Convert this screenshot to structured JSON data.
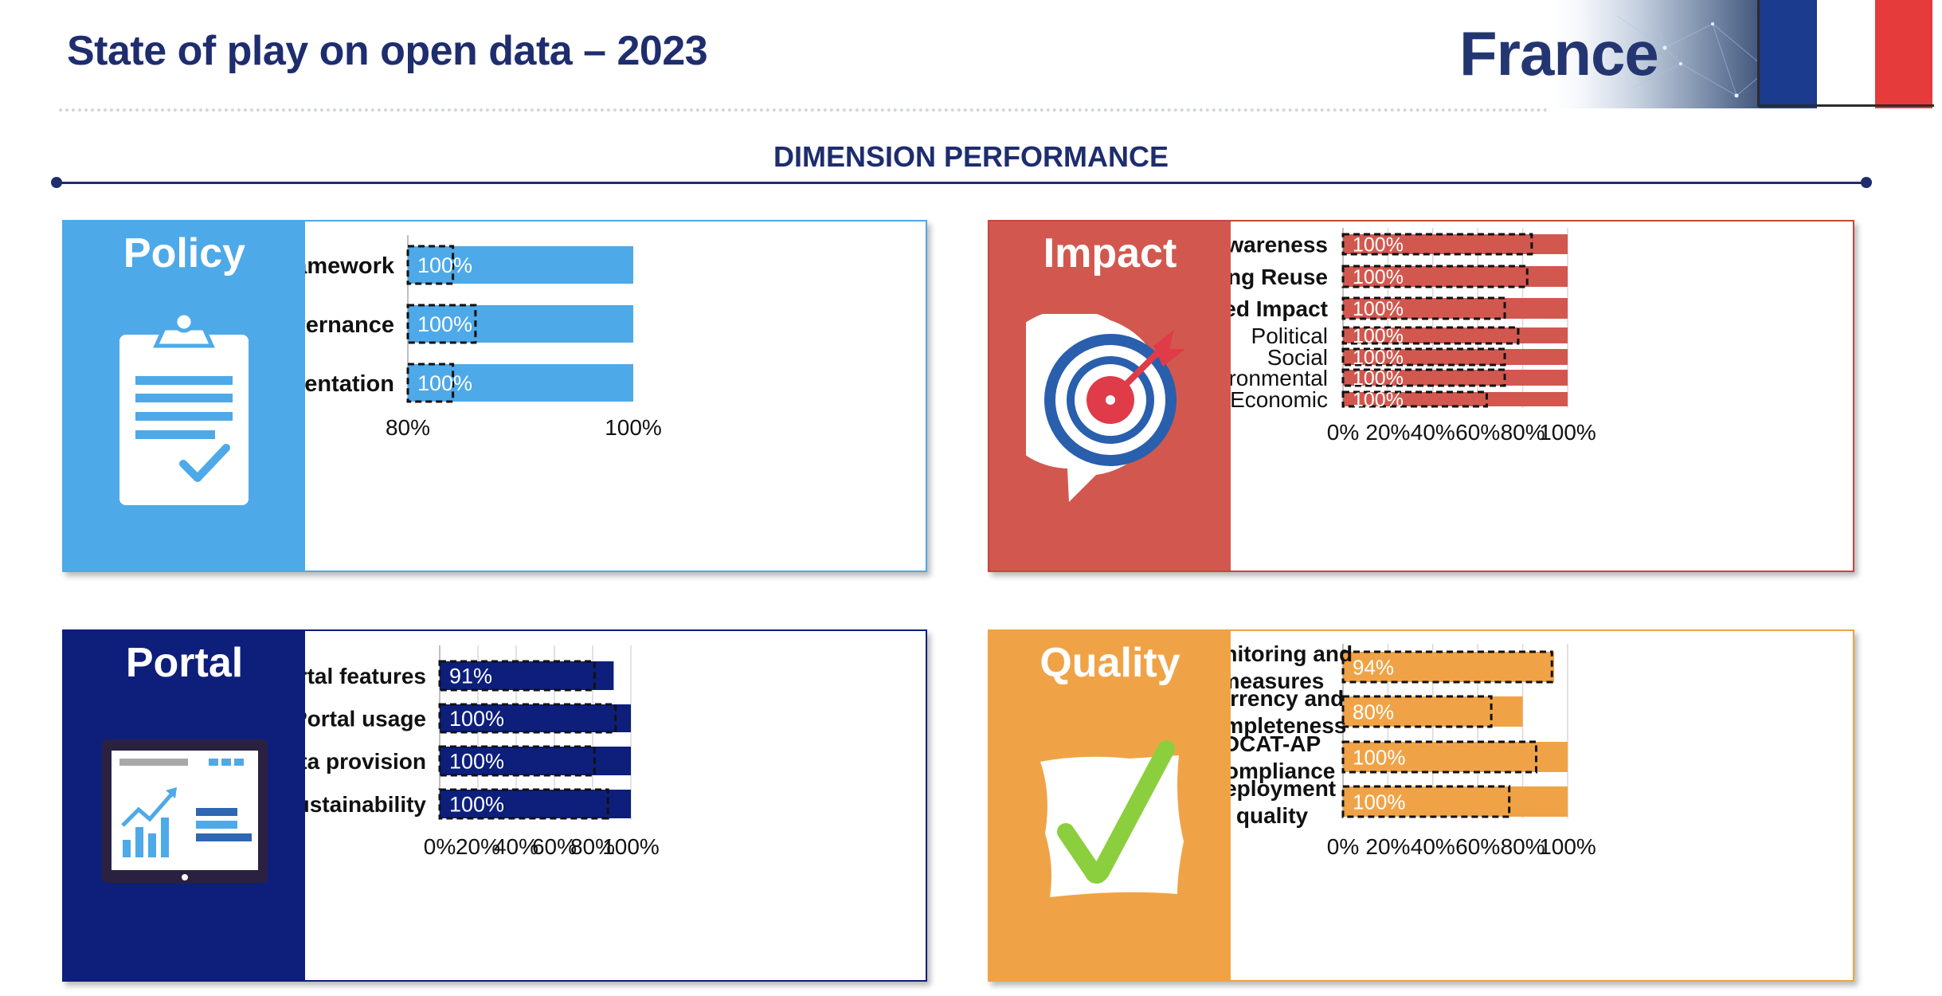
{
  "header": {
    "title": "State of play on open data – 2023",
    "country": "France",
    "section_title": "DIMENSION PERFORMANCE"
  },
  "colors": {
    "navy": "#1e2d6e",
    "policy": "#4ea9e8",
    "impact": "#d2584f",
    "portal": "#0d1f7b",
    "quality": "#f0a346",
    "flag_blue": "#1b3b8f",
    "flag_red": "#e53b3a"
  },
  "panels": {
    "policy": {
      "title": "Policy",
      "icon": "clipboard-checklist-icon"
    },
    "impact": {
      "title": "Impact",
      "icon": "target-arrow-icon"
    },
    "portal": {
      "title": "Portal",
      "icon": "monitor-chart-icon"
    },
    "quality": {
      "title": "Quality",
      "icon": "checkmark-icon"
    }
  },
  "chart_data": [
    {
      "id": "policy",
      "type": "bar",
      "orientation": "horizontal",
      "categories": [
        "Policy Framework",
        "Governance",
        "Implementation"
      ],
      "values": [
        100,
        100,
        100
      ],
      "data_labels": [
        "100%",
        "100%",
        "100%"
      ],
      "reference_values": [
        84,
        86,
        84
      ],
      "xlim": [
        80,
        100
      ],
      "xticks": [
        80,
        100
      ],
      "tick_labels": [
        "80%",
        "100%"
      ],
      "unit": "%",
      "grid": false
    },
    {
      "id": "impact",
      "type": "bar",
      "orientation": "horizontal",
      "categories": [
        "Awareness",
        "Measuring Reuse",
        "Created Impact",
        "Political",
        "Social",
        "Environmental",
        "Economic"
      ],
      "category_weights": [
        "bold",
        "bold",
        "bold",
        "normal",
        "normal",
        "normal",
        "normal"
      ],
      "values": [
        100,
        100,
        100,
        100,
        100,
        100,
        100
      ],
      "data_labels": [
        "100%",
        "100%",
        "100%",
        "100%",
        "100%",
        "100%",
        "100%"
      ],
      "reference_values": [
        84,
        82,
        72,
        78,
        72,
        72,
        64
      ],
      "xlim": [
        0,
        100
      ],
      "xticks": [
        0,
        20,
        40,
        60,
        80,
        100
      ],
      "tick_labels": [
        "0%",
        "20%",
        "40%",
        "60%",
        "80%",
        "100%"
      ],
      "unit": "%",
      "grid": true
    },
    {
      "id": "portal",
      "type": "bar",
      "orientation": "horizontal",
      "categories": [
        "Portal features",
        "Portal usage",
        "Data provision",
        "Portal sustainability"
      ],
      "values": [
        91,
        100,
        100,
        100
      ],
      "data_labels": [
        "91%",
        "100%",
        "100%",
        "100%"
      ],
      "reference_values": [
        81,
        92,
        81,
        88
      ],
      "xlim": [
        0,
        100
      ],
      "xticks": [
        0,
        20,
        40,
        60,
        80,
        100
      ],
      "tick_labels": [
        "0%",
        "20%",
        "40%",
        "60%",
        "80%",
        "100%"
      ],
      "unit": "%",
      "grid": true
    },
    {
      "id": "quality",
      "type": "bar",
      "orientation": "horizontal",
      "categories": [
        [
          "Monitoring and",
          "measures"
        ],
        [
          "Currency and",
          "completeness"
        ],
        [
          "DCAT-AP",
          "Compliance"
        ],
        [
          "Deployment",
          "quality"
        ]
      ],
      "values": [
        94,
        80,
        100,
        100
      ],
      "data_labels": [
        "94%",
        "80%",
        "100%",
        "100%"
      ],
      "reference_values": [
        93,
        66,
        86,
        74
      ],
      "xlim": [
        0,
        100
      ],
      "xticks": [
        0,
        20,
        40,
        60,
        80,
        100
      ],
      "tick_labels": [
        "0%",
        "20%",
        "40%",
        "60%",
        "80%",
        "100%"
      ],
      "unit": "%",
      "grid": true
    }
  ]
}
